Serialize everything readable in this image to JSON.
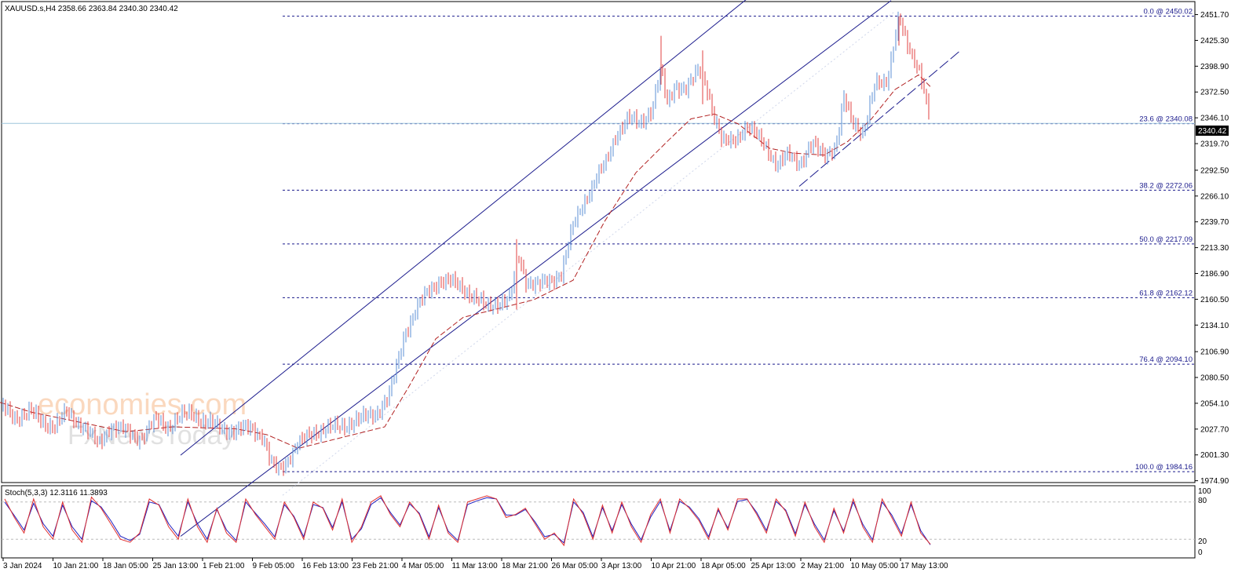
{
  "header": {
    "symbol_line": "XAUUSD.s,H4  2358.66 2363.84 2340.30 2340.42"
  },
  "indicator": {
    "label": "Stoch(5,3,3) 12.3116 11.3893",
    "levels": [
      "100",
      "80",
      "20",
      "0"
    ]
  },
  "watermark": {
    "line1": "economies.com",
    "line2": "FxNewsToday"
  },
  "current_price": "2340.42",
  "colors": {
    "bull": "#5b8fd6",
    "bear": "#e04040",
    "fib": "#1a1a8c",
    "channel": "#1a1a8c",
    "ma": "#b22222",
    "stoch_main": "#e03030",
    "stoch_signal": "#2020c0"
  },
  "chart_data": {
    "type": "candlestick",
    "price_axis_ticks": [
      "2451.70",
      "2425.30",
      "2398.90",
      "2372.50",
      "2346.10",
      "2319.70",
      "2292.50",
      "2266.10",
      "2239.70",
      "2213.30",
      "2186.90",
      "2160.50",
      "2134.10",
      "2106.90",
      "2080.50",
      "2054.10",
      "2027.70",
      "2001.30",
      "1974.90"
    ],
    "ylim": [
      1973,
      2465
    ],
    "time_labels": [
      "3 Jan 2024",
      "10 Jan 21:00",
      "18 Jan 05:00",
      "25 Jan 13:00",
      "1 Feb 21:00",
      "9 Feb 05:00",
      "16 Feb 13:00",
      "23 Feb 21:00",
      "4 Mar 05:00",
      "11 Mar 13:00",
      "18 Mar 21:00",
      "26 Mar 05:00",
      "3 Apr 13:00",
      "10 Apr 21:00",
      "18 Apr 05:00",
      "25 Apr 13:00",
      "2 May 21:00",
      "10 May 05:00",
      "17 May 13:00"
    ],
    "fib_levels": [
      {
        "label": "0.0 @ 2450.02",
        "value": 2450.02
      },
      {
        "label": "23.6 @ 2340.08",
        "value": 2340.08
      },
      {
        "label": "38.2 @ 2272.06",
        "value": 2272.06
      },
      {
        "label": "50.0 @ 2217.09",
        "value": 2217.09
      },
      {
        "label": "61.8 @ 2162.12",
        "value": 2162.12
      },
      {
        "label": "76.4 @ 2094.10",
        "value": 2094.1
      },
      {
        "label": "100.0 @ 1984.16",
        "value": 1984.16
      }
    ],
    "anchors": [
      [
        0,
        2052
      ],
      [
        20,
        2040
      ],
      [
        40,
        2045
      ],
      [
        55,
        2035
      ],
      [
        70,
        2030
      ],
      [
        85,
        2045
      ],
      [
        100,
        2035
      ],
      [
        115,
        2022
      ],
      [
        125,
        2012
      ],
      [
        140,
        2030
      ],
      [
        160,
        2025
      ],
      [
        180,
        2018
      ],
      [
        200,
        2038
      ],
      [
        215,
        2030
      ],
      [
        230,
        2040
      ],
      [
        245,
        2045
      ],
      [
        260,
        2035
      ],
      [
        280,
        2030
      ],
      [
        300,
        2025
      ],
      [
        320,
        2030
      ],
      [
        335,
        2020
      ],
      [
        345,
        1992
      ],
      [
        355,
        1986
      ],
      [
        365,
        1995
      ],
      [
        380,
        2012
      ],
      [
        400,
        2025
      ],
      [
        420,
        2028
      ],
      [
        440,
        2032
      ],
      [
        460,
        2038
      ],
      [
        480,
        2045
      ],
      [
        495,
        2060
      ],
      [
        505,
        2090
      ],
      [
        515,
        2125
      ],
      [
        530,
        2150
      ],
      [
        545,
        2168
      ],
      [
        560,
        2180
      ],
      [
        575,
        2178
      ],
      [
        590,
        2172
      ],
      [
        605,
        2162
      ],
      [
        620,
        2152
      ],
      [
        635,
        2158
      ],
      [
        650,
        2160
      ],
      [
        660,
        2205
      ],
      [
        670,
        2180
      ],
      [
        685,
        2175
      ],
      [
        700,
        2178
      ],
      [
        715,
        2188
      ],
      [
        730,
        2235
      ],
      [
        745,
        2262
      ],
      [
        760,
        2285
      ],
      [
        772,
        2300
      ],
      [
        785,
        2330
      ],
      [
        800,
        2345
      ],
      [
        815,
        2340
      ],
      [
        830,
        2355
      ],
      [
        842,
        2395
      ],
      [
        850,
        2360
      ],
      [
        860,
        2380
      ],
      [
        875,
        2375
      ],
      [
        890,
        2395
      ],
      [
        900,
        2380
      ],
      [
        910,
        2345
      ],
      [
        920,
        2320
      ],
      [
        935,
        2325
      ],
      [
        950,
        2335
      ],
      [
        962,
        2330
      ],
      [
        975,
        2320
      ],
      [
        990,
        2295
      ],
      [
        1005,
        2310
      ],
      [
        1020,
        2300
      ],
      [
        1035,
        2318
      ],
      [
        1050,
        2310
      ],
      [
        1065,
        2315
      ],
      [
        1075,
        2365
      ],
      [
        1085,
        2345
      ],
      [
        1100,
        2330
      ],
      [
        1115,
        2380
      ],
      [
        1130,
        2385
      ],
      [
        1138,
        2420
      ],
      [
        1145,
        2448
      ],
      [
        1155,
        2420
      ],
      [
        1165,
        2405
      ],
      [
        1172,
        2395
      ],
      [
        1178,
        2370
      ],
      [
        1185,
        2340.42
      ]
    ],
    "ma_anchors": [
      [
        0,
        2055
      ],
      [
        40,
        2045
      ],
      [
        100,
        2035
      ],
      [
        160,
        2025
      ],
      [
        220,
        2030
      ],
      [
        300,
        2028
      ],
      [
        340,
        2022
      ],
      [
        380,
        2008
      ],
      [
        440,
        2020
      ],
      [
        490,
        2030
      ],
      [
        520,
        2070
      ],
      [
        555,
        2120
      ],
      [
        590,
        2142
      ],
      [
        630,
        2150
      ],
      [
        680,
        2160
      ],
      [
        730,
        2180
      ],
      [
        770,
        2240
      ],
      [
        810,
        2290
      ],
      [
        850,
        2322
      ],
      [
        880,
        2345
      ],
      [
        910,
        2350
      ],
      [
        940,
        2340
      ],
      [
        980,
        2315
      ],
      [
        1010,
        2310
      ],
      [
        1050,
        2308
      ],
      [
        1080,
        2322
      ],
      [
        1110,
        2345
      ],
      [
        1140,
        2375
      ],
      [
        1170,
        2390
      ],
      [
        1185,
        2378
      ]
    ],
    "channel_upper": [
      [
        230,
        2001
      ],
      [
        958,
        2472
      ]
    ],
    "channel_lower": [
      [
        230,
        1918
      ],
      [
        1135,
        2466
      ]
    ],
    "small_channel": [
      [
        1018,
        2276
      ],
      [
        1222,
        2414
      ]
    ],
    "stoch": {
      "ylim": [
        0,
        100
      ],
      "levels": [
        80,
        20
      ],
      "main": [
        85,
        55,
        30,
        85,
        40,
        20,
        80,
        35,
        15,
        88,
        70,
        45,
        20,
        15,
        30,
        85,
        75,
        40,
        20,
        85,
        40,
        15,
        70,
        30,
        15,
        85,
        60,
        40,
        20,
        80,
        55,
        20,
        80,
        70,
        35,
        85,
        15,
        40,
        80,
        90,
        60,
        40,
        80,
        60,
        20,
        75,
        30,
        15,
        80,
        85,
        90,
        85,
        55,
        60,
        70,
        45,
        20,
        30,
        10,
        85,
        60,
        20,
        75,
        30,
        80,
        40,
        15,
        60,
        85,
        30,
        85,
        70,
        50,
        20,
        70,
        35,
        85,
        85,
        60,
        30,
        85,
        65,
        25,
        80,
        40,
        15,
        70,
        30,
        85,
        40,
        15,
        85,
        55,
        25,
        80,
        30,
        12
      ],
      "signal": [
        80,
        58,
        35,
        78,
        45,
        25,
        75,
        40,
        20,
        82,
        72,
        50,
        25,
        18,
        28,
        80,
        76,
        45,
        25,
        80,
        45,
        20,
        68,
        35,
        18,
        80,
        62,
        44,
        24,
        76,
        57,
        24,
        76,
        71,
        39,
        80,
        20,
        37,
        76,
        87,
        63,
        43,
        77,
        62,
        24,
        71,
        33,
        18,
        76,
        82,
        87,
        85,
        59,
        59,
        68,
        48,
        24,
        28,
        14,
        80,
        63,
        24,
        71,
        34,
        76,
        44,
        19,
        56,
        81,
        34,
        81,
        72,
        53,
        24,
        67,
        38,
        81,
        84,
        63,
        34,
        81,
        67,
        29,
        76,
        44,
        19,
        66,
        33,
        80,
        44,
        19,
        80,
        59,
        29,
        76,
        34,
        11
      ]
    }
  }
}
